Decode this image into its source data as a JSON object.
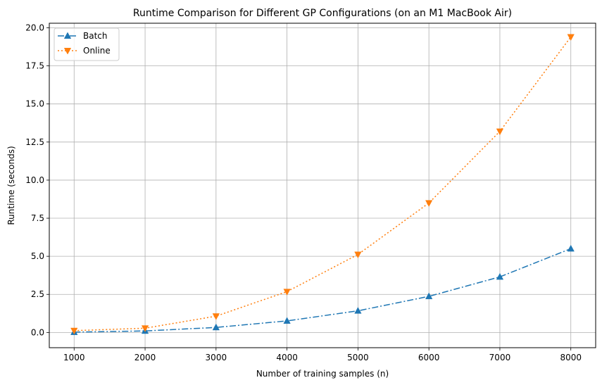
{
  "chart_data": {
    "type": "line",
    "title": "Runtime Comparison for Different GP Configurations (on an M1 MacBook Air)",
    "xlabel": "Number of training samples (n)",
    "ylabel": "Runtime (seconds)",
    "x": [
      1000,
      2000,
      3000,
      4000,
      5000,
      6000,
      7000,
      8000
    ],
    "xlim": [
      650,
      8350
    ],
    "ylim": [
      -1.0,
      20.3
    ],
    "xticks": [
      1000,
      2000,
      3000,
      4000,
      5000,
      6000,
      7000,
      8000
    ],
    "xtick_labels": [
      "1000",
      "2000",
      "3000",
      "4000",
      "5000",
      "6000",
      "7000",
      "8000"
    ],
    "yticks": [
      0.0,
      2.5,
      5.0,
      7.5,
      10.0,
      12.5,
      15.0,
      17.5,
      20.0
    ],
    "ytick_labels": [
      "0.0",
      "2.5",
      "5.0",
      "7.5",
      "10.0",
      "12.5",
      "15.0",
      "17.5",
      "20.0"
    ],
    "grid": true,
    "legend_position": "top-left",
    "series": [
      {
        "name": "Batch",
        "values": [
          0.02,
          0.1,
          0.33,
          0.76,
          1.42,
          2.37,
          3.65,
          5.5
        ],
        "color": "#1f77b4",
        "line_style": "dash-dot",
        "marker": "triangle-up"
      },
      {
        "name": "Online",
        "values": [
          0.12,
          0.28,
          1.07,
          2.68,
          5.12,
          8.5,
          13.2,
          19.4
        ],
        "color": "#ff7f0e",
        "line_style": "dotted",
        "marker": "triangle-down"
      }
    ]
  }
}
